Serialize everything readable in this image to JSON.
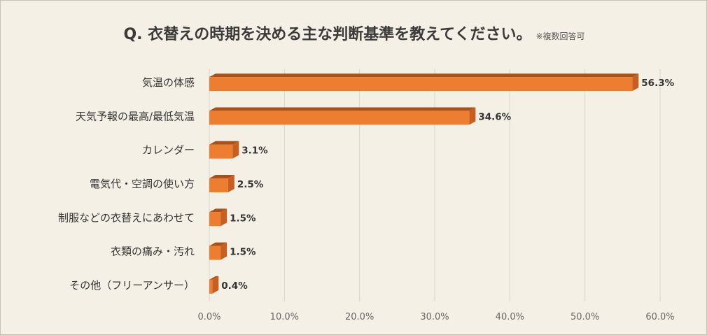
{
  "chart_data": {
    "type": "bar",
    "orientation": "horizontal",
    "title": "Q. 衣替えの時期を決める主な判断基準を教えてください。",
    "note": "※複数回答可",
    "categories": [
      "気温の体感",
      "天気予報の最高/最低気温",
      "カレンダー",
      "電気代・空調の使い方",
      "制服などの衣替えにあわせて",
      "衣類の痛み・汚れ",
      "その他（フリーアンサー）"
    ],
    "values": [
      56.3,
      34.6,
      3.1,
      2.5,
      1.5,
      1.5,
      0.4
    ],
    "value_labels": [
      "56.3%",
      "34.6%",
      "3.1%",
      "2.5%",
      "1.5%",
      "1.5%",
      "0.4%"
    ],
    "xlim": [
      0,
      60
    ],
    "x_ticks": [
      "0.0%",
      "10.0%",
      "20.0%",
      "30.0%",
      "40.0%",
      "50.0%",
      "60.0%"
    ],
    "grid": true,
    "colors": {
      "bar_face": "#ed7d31",
      "bar_dark": "#a9511a",
      "bar_side": "#c65f1f",
      "background": "#f5f0e6",
      "grid": "#d8d3c8"
    }
  }
}
